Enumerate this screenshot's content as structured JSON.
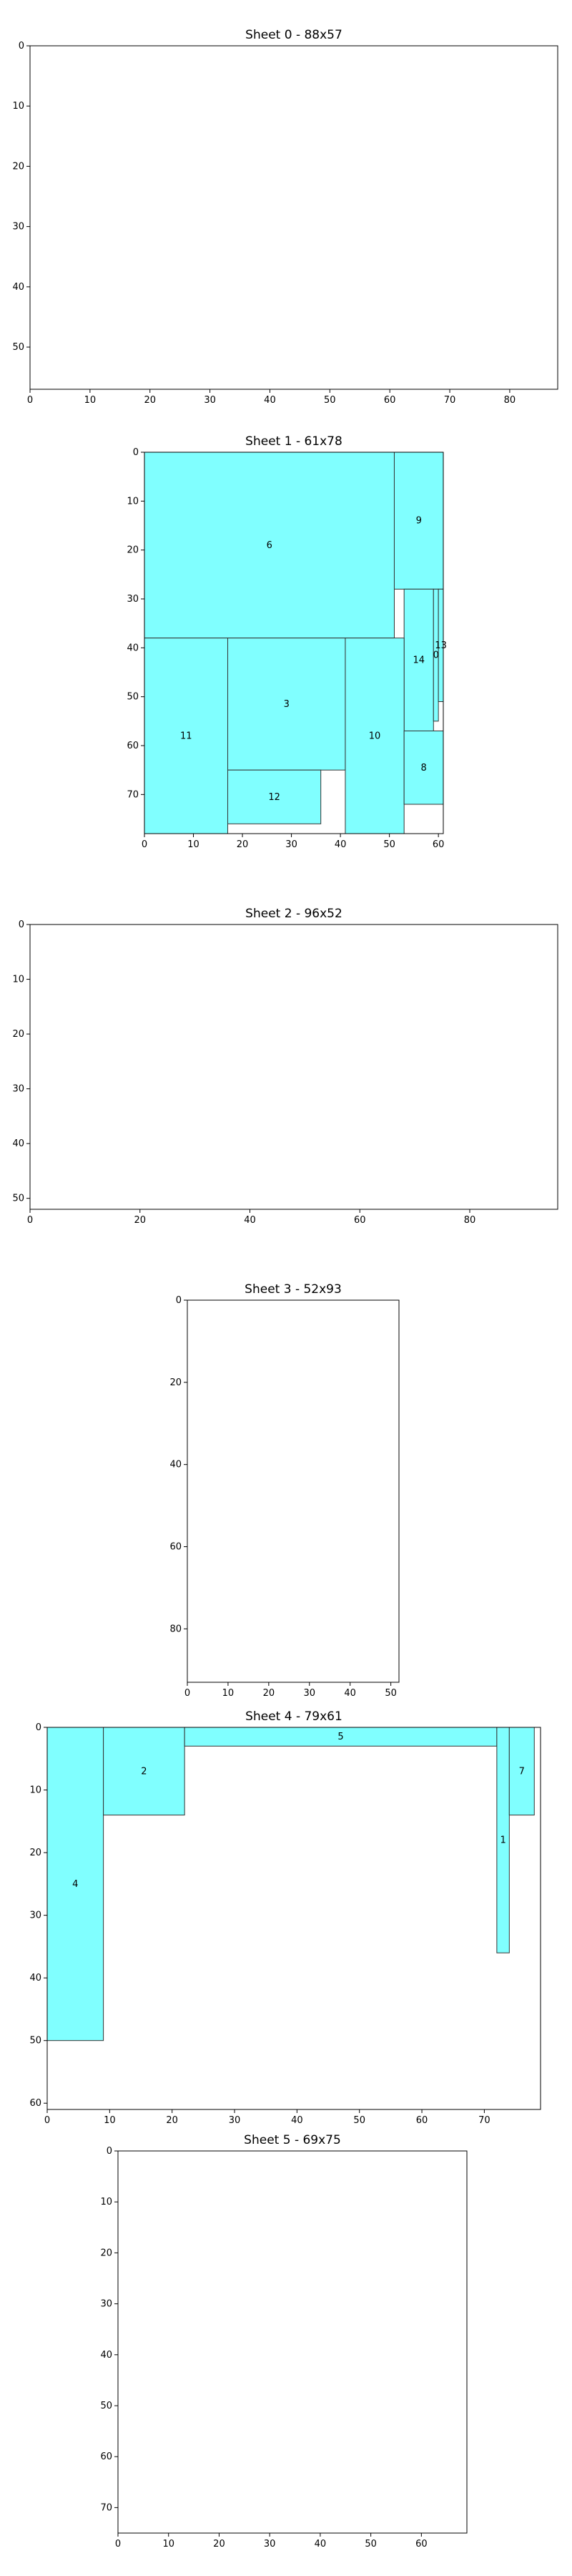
{
  "chart_data": [
    {
      "type": "rectangle-packing",
      "title": "Sheet 0 - 88x57",
      "width": 88,
      "height": 57,
      "xlim": [
        0,
        88
      ],
      "ylim": [
        57,
        0
      ],
      "xticks": [
        0,
        10,
        20,
        30,
        40,
        50,
        60,
        70,
        80
      ],
      "yticks": [
        0,
        10,
        20,
        30,
        40,
        50
      ],
      "rects": []
    },
    {
      "type": "rectangle-packing",
      "title": "Sheet 1 - 61x78",
      "width": 61,
      "height": 78,
      "xlim": [
        0,
        61
      ],
      "ylim": [
        78,
        0
      ],
      "xticks": [
        0,
        10,
        20,
        30,
        40,
        50,
        60
      ],
      "yticks": [
        0,
        10,
        20,
        30,
        40,
        50,
        60,
        70
      ],
      "rects": [
        {
          "label": "6",
          "x": 0,
          "y": 0,
          "w": 51,
          "h": 38
        },
        {
          "label": "9",
          "x": 51,
          "y": 0,
          "w": 10,
          "h": 28
        },
        {
          "label": "14",
          "x": 53,
          "y": 28,
          "w": 6,
          "h": 29
        },
        {
          "label": "0",
          "x": 59,
          "y": 28,
          "w": 1,
          "h": 27
        },
        {
          "label": "13",
          "x": 60,
          "y": 28,
          "w": 1,
          "h": 23
        },
        {
          "label": "11",
          "x": 0,
          "y": 38,
          "w": 17,
          "h": 40
        },
        {
          "label": "3",
          "x": 17,
          "y": 38,
          "w": 24,
          "h": 27
        },
        {
          "label": "10",
          "x": 41,
          "y": 38,
          "w": 12,
          "h": 40
        },
        {
          "label": "12",
          "x": 17,
          "y": 65,
          "w": 19,
          "h": 11
        },
        {
          "label": "8",
          "x": 53,
          "y": 57,
          "w": 8,
          "h": 15
        }
      ]
    },
    {
      "type": "rectangle-packing",
      "title": "Sheet 2 - 96x52",
      "width": 96,
      "height": 52,
      "xlim": [
        0,
        96
      ],
      "ylim": [
        52,
        0
      ],
      "xticks": [
        0,
        20,
        40,
        60,
        80
      ],
      "yticks": [
        0,
        10,
        20,
        30,
        40,
        50
      ],
      "rects": []
    },
    {
      "type": "rectangle-packing",
      "title": "Sheet 3 - 52x93",
      "width": 52,
      "height": 93,
      "xlim": [
        0,
        52
      ],
      "ylim": [
        93,
        0
      ],
      "xticks": [
        0,
        10,
        20,
        30,
        40,
        50
      ],
      "yticks": [
        0,
        20,
        40,
        60,
        80
      ],
      "rects": []
    },
    {
      "type": "rectangle-packing",
      "title": "Sheet 4 - 79x61",
      "width": 79,
      "height": 61,
      "xlim": [
        0,
        79
      ],
      "ylim": [
        61,
        0
      ],
      "xticks": [
        0,
        10,
        20,
        30,
        40,
        50,
        60,
        70
      ],
      "yticks": [
        0,
        10,
        20,
        30,
        40,
        50,
        60
      ],
      "rects": [
        {
          "label": "4",
          "x": 0,
          "y": 0,
          "w": 9,
          "h": 50
        },
        {
          "label": "2",
          "x": 9,
          "y": 0,
          "w": 13,
          "h": 14
        },
        {
          "label": "5",
          "x": 22,
          "y": 0,
          "w": 50,
          "h": 3
        },
        {
          "label": "1",
          "x": 72,
          "y": 0,
          "w": 2,
          "h": 36
        },
        {
          "label": "7",
          "x": 74,
          "y": 0,
          "w": 4,
          "h": 14
        }
      ]
    },
    {
      "type": "rectangle-packing",
      "title": "Sheet 5 - 69x75",
      "width": 69,
      "height": 75,
      "xlim": [
        0,
        69
      ],
      "ylim": [
        75,
        0
      ],
      "xticks": [
        0,
        10,
        20,
        30,
        40,
        50,
        60
      ],
      "yticks": [
        0,
        10,
        20,
        30,
        40,
        50,
        60,
        70
      ],
      "rects": []
    }
  ],
  "colors": {
    "fill": "#80ffff",
    "edge": "#333333",
    "axis": "#000000"
  }
}
